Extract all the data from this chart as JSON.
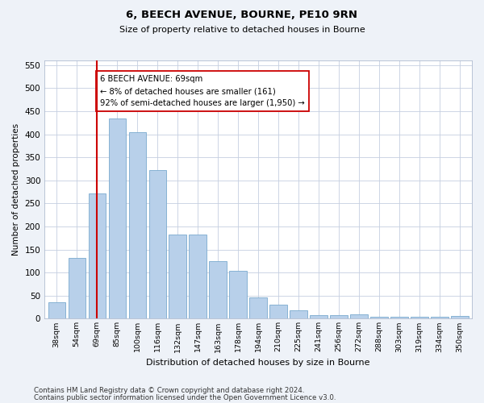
{
  "title1": "6, BEECH AVENUE, BOURNE, PE10 9RN",
  "title2": "Size of property relative to detached houses in Bourne",
  "xlabel": "Distribution of detached houses by size in Bourne",
  "ylabel": "Number of detached properties",
  "categories": [
    "38sqm",
    "54sqm",
    "69sqm",
    "85sqm",
    "100sqm",
    "116sqm",
    "132sqm",
    "147sqm",
    "163sqm",
    "178sqm",
    "194sqm",
    "210sqm",
    "225sqm",
    "241sqm",
    "256sqm",
    "272sqm",
    "288sqm",
    "303sqm",
    "319sqm",
    "334sqm",
    "350sqm"
  ],
  "values": [
    35,
    132,
    272,
    435,
    405,
    322,
    183,
    183,
    125,
    103,
    46,
    30,
    18,
    8,
    8,
    10,
    4,
    5,
    4,
    5,
    6
  ],
  "bar_color": "#b8d0ea",
  "bar_edge_color": "#7aaace",
  "highlight_index": 2,
  "highlight_line_color": "#cc0000",
  "annotation_text": "6 BEECH AVENUE: 69sqm\n← 8% of detached houses are smaller (161)\n92% of semi-detached houses are larger (1,950) →",
  "annotation_box_color": "#ffffff",
  "annotation_box_edge_color": "#cc0000",
  "ylim": [
    0,
    560
  ],
  "yticks": [
    0,
    50,
    100,
    150,
    200,
    250,
    300,
    350,
    400,
    450,
    500,
    550
  ],
  "footer1": "Contains HM Land Registry data © Crown copyright and database right 2024.",
  "footer2": "Contains public sector information licensed under the Open Government Licence v3.0.",
  "bg_color": "#eef2f8",
  "plot_bg_color": "#ffffff",
  "grid_color": "#c5cfe0"
}
